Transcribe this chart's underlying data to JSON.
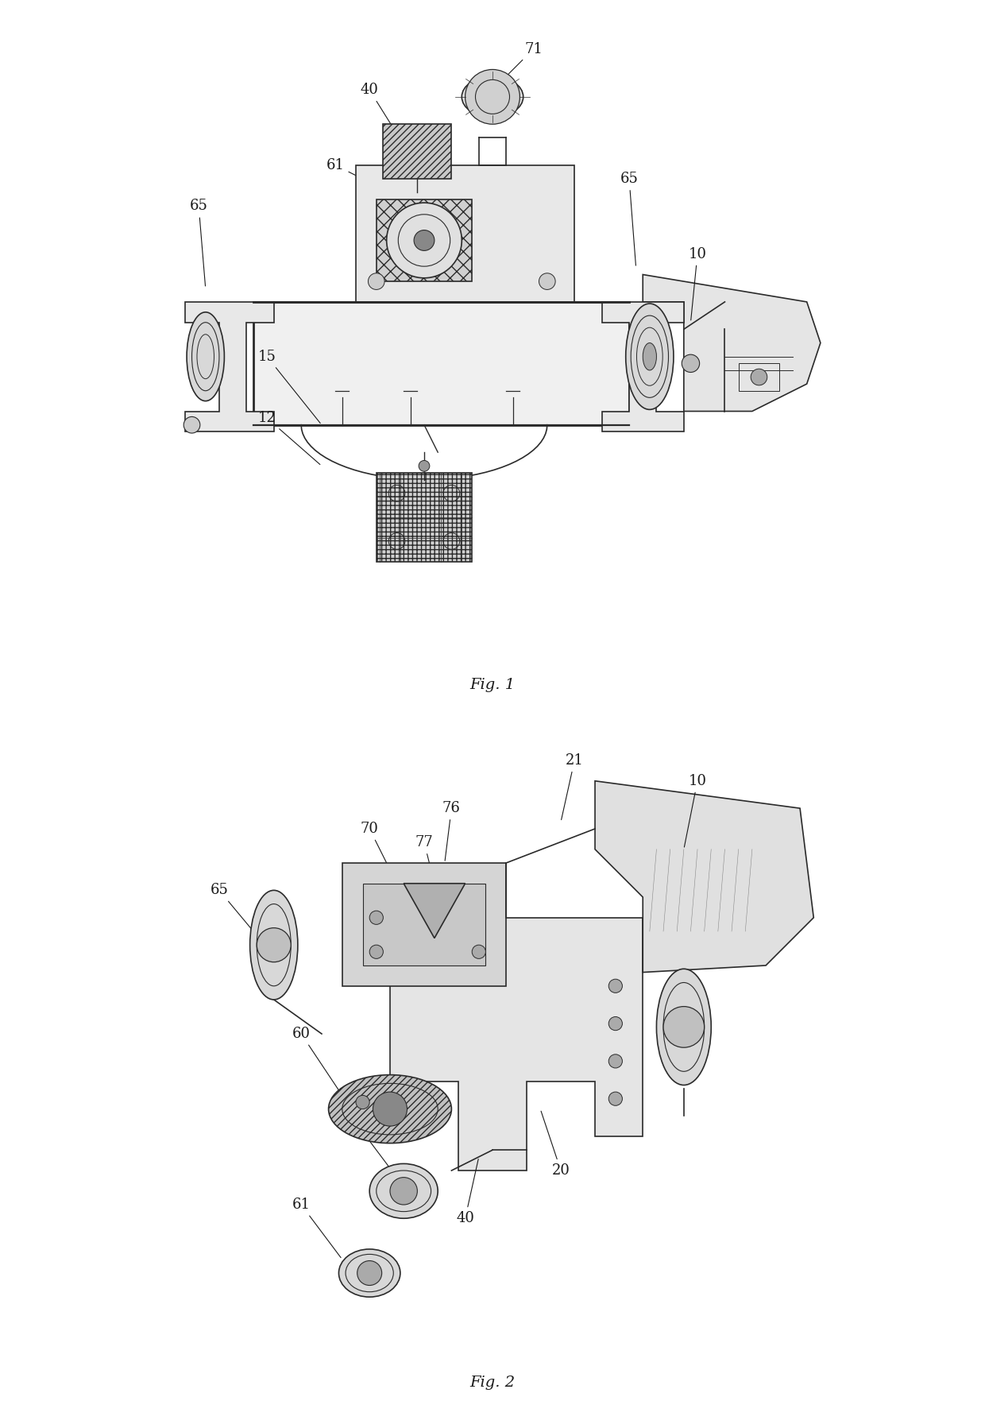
{
  "background_color": "#ffffff",
  "fig_width": 12.4,
  "fig_height": 17.92,
  "dpi": 100,
  "fig1_caption": "Fig. 1",
  "fig2_caption": "Fig. 2",
  "line_color": "#2a2a2a",
  "label_color": "#1a1a1a",
  "label_fontsize": 13,
  "caption_fontsize": 14
}
